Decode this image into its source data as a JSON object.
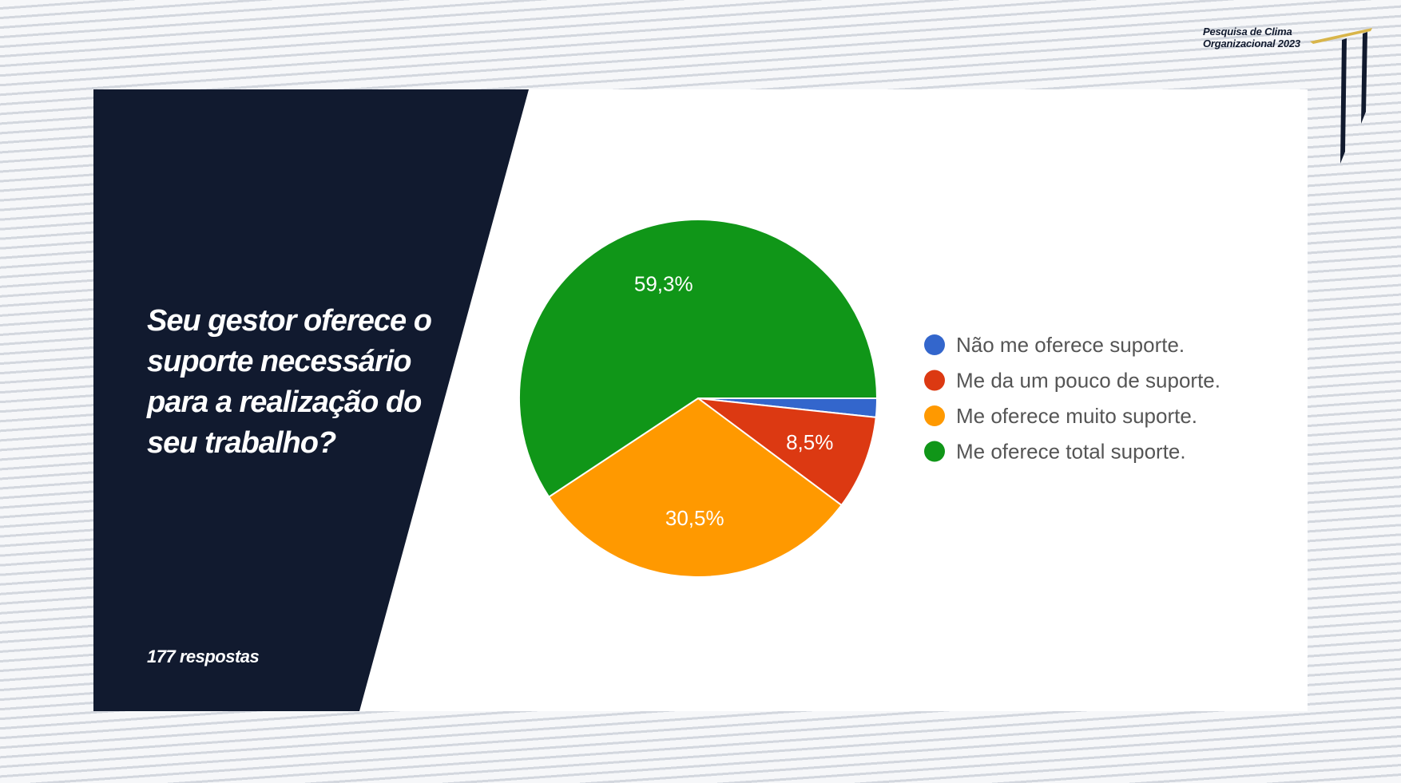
{
  "brand": {
    "line1": "Pesquisa de Clima",
    "line2": "Organizacional 2023"
  },
  "question": "Seu gestor oferece o suporte necessário para a realização do seu trabalho?",
  "responses_label": "177 respostas",
  "chart_data": {
    "type": "pie",
    "title": "",
    "slices": [
      {
        "label": "Não me oferece suporte.",
        "value": 1.7,
        "value_label": "",
        "color": "#3366cc"
      },
      {
        "label": "Me da um pouco de suporte.",
        "value": 8.5,
        "value_label": "8,5%",
        "color": "#dc3912"
      },
      {
        "label": "Me oferece muito suporte.",
        "value": 30.5,
        "value_label": "30,5%",
        "color": "#ff9900"
      },
      {
        "label": "Me oferece total suporte.",
        "value": 59.3,
        "value_label": "59,3%",
        "color": "#109618"
      }
    ],
    "legend_position": "right"
  }
}
